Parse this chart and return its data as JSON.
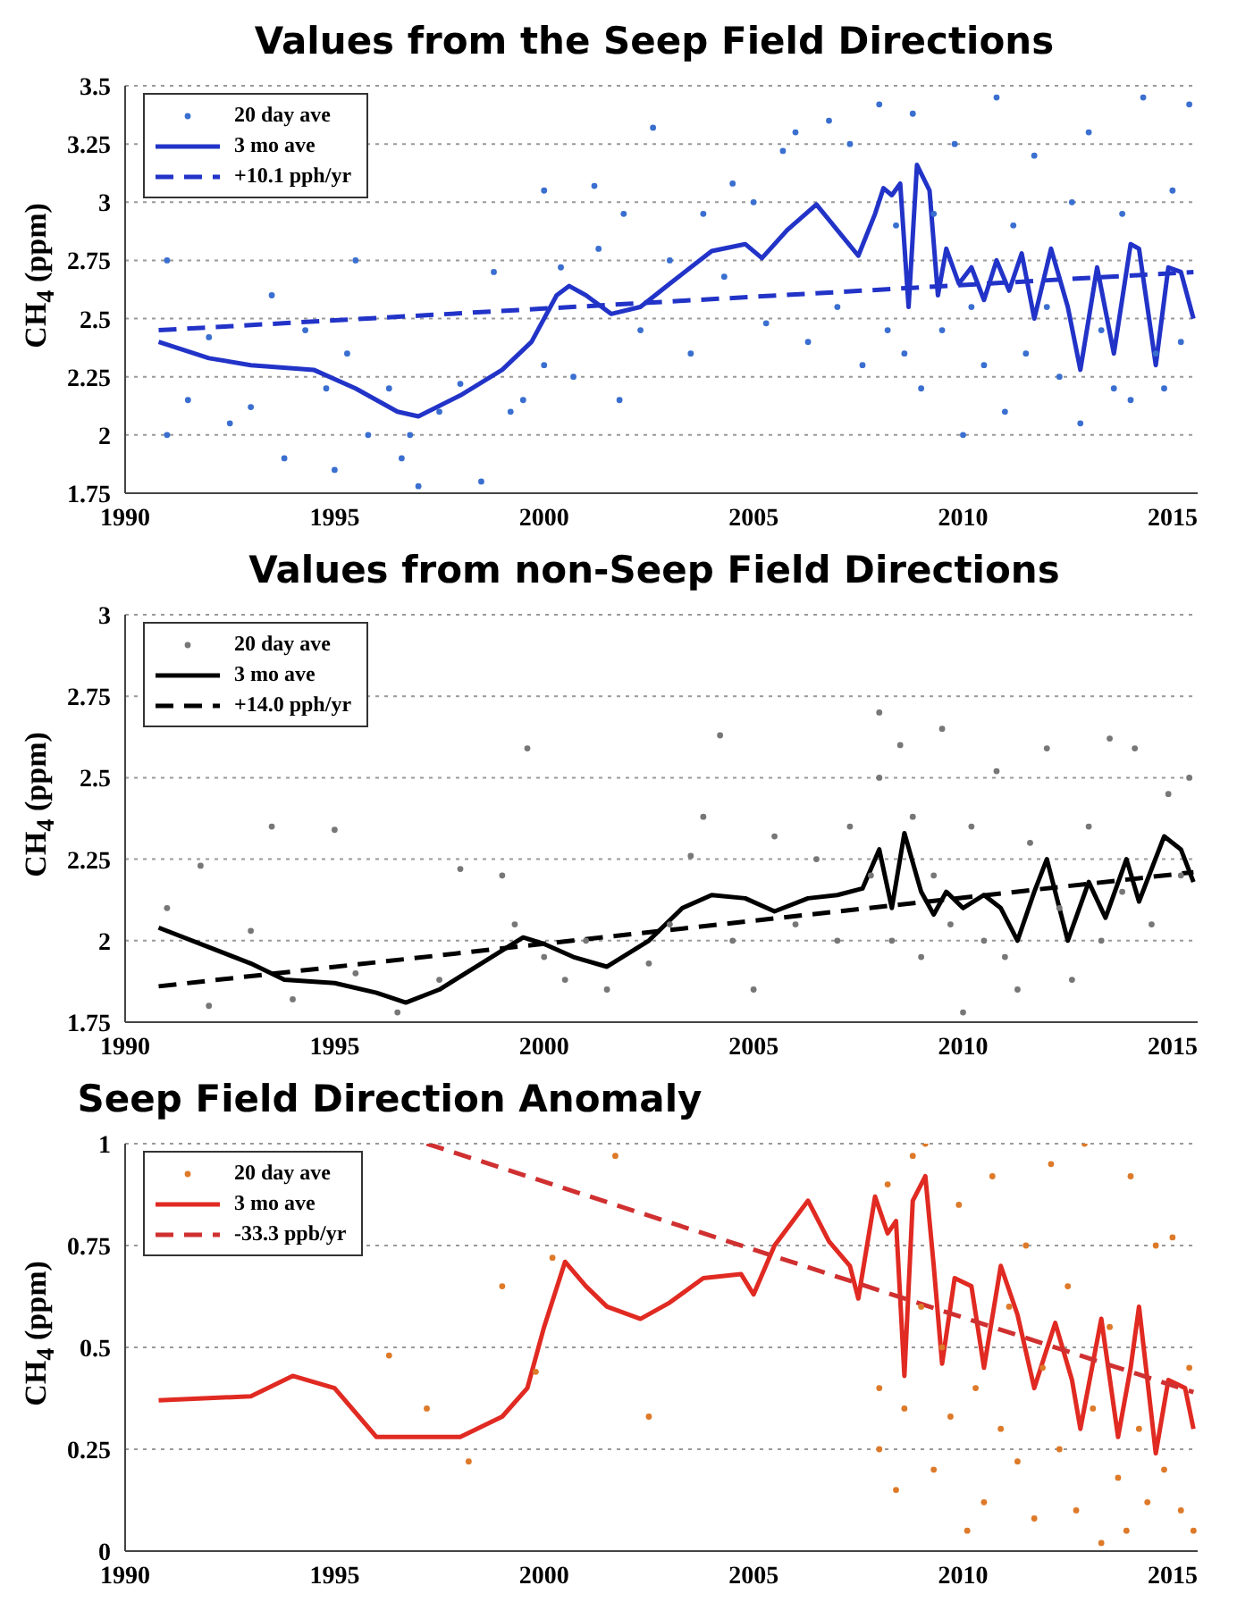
{
  "chart_data": [
    {
      "type": "line",
      "title": "Values from the Seep Field Directions",
      "ylabel": "CH$_{4}$ (ppm)",
      "xlim": [
        1990,
        2015.6
      ],
      "xticks": [
        1990,
        1995,
        2000,
        2005,
        2010,
        2015
      ],
      "ylim": [
        1.75,
        3.5
      ],
      "yticks": [
        1.75,
        2,
        2.25,
        2.5,
        2.75,
        3,
        3.25,
        3.5
      ],
      "grid": "y",
      "legend": "top left",
      "series": [
        {
          "name": "20 day ave",
          "type": "scatter",
          "marker": "circle",
          "color": "#3a6fd0",
          "x": [
            1991,
            1991,
            1991.5,
            1992,
            1992.5,
            1993,
            1993.5,
            1993.8,
            1994.3,
            1994.8,
            1995,
            1995.3,
            1995.5,
            1995.8,
            1996.3,
            1996.6,
            1996.8,
            1997,
            1997.5,
            1998,
            1998.5,
            1998.8,
            1999.2,
            1999.5,
            2000,
            2000,
            2000.4,
            2000.7,
            2001.2,
            2001.3,
            2001.8,
            2001.9,
            2002.3,
            2002.6,
            2003,
            2003.5,
            2003.8,
            2004.3,
            2004.5,
            2005,
            2005.3,
            2005.7,
            2006,
            2006.3,
            2006.8,
            2007,
            2007.3,
            2007.6,
            2008,
            2008.2,
            2008.4,
            2008.6,
            2008.8,
            2009,
            2009.3,
            2009.5,
            2009.8,
            2010,
            2010.2,
            2010.5,
            2010.8,
            2011,
            2011.2,
            2011.5,
            2011.7,
            2012,
            2012.3,
            2012.6,
            2012.8,
            2013,
            2013.3,
            2013.6,
            2013.8,
            2014,
            2014.3,
            2014.6,
            2014.8,
            2015,
            2015.2,
            2015.4
          ],
          "values": [
            2.75,
            2.0,
            2.15,
            2.42,
            2.05,
            2.12,
            2.6,
            1.9,
            2.45,
            2.2,
            1.85,
            2.35,
            2.75,
            2.0,
            2.2,
            1.9,
            2.0,
            1.78,
            2.1,
            2.22,
            1.8,
            2.7,
            2.1,
            2.15,
            2.3,
            3.05,
            2.72,
            2.25,
            3.07,
            2.8,
            2.15,
            2.95,
            2.45,
            3.32,
            2.75,
            2.35,
            2.95,
            2.68,
            3.08,
            3.0,
            2.48,
            3.22,
            3.3,
            2.4,
            3.35,
            2.55,
            3.25,
            2.3,
            3.42,
            2.45,
            2.9,
            2.35,
            3.38,
            2.2,
            2.95,
            2.45,
            3.25,
            2.0,
            2.55,
            2.3,
            3.45,
            2.1,
            2.9,
            2.35,
            3.2,
            2.55,
            2.25,
            3.0,
            2.05,
            3.3,
            2.45,
            2.2,
            2.95,
            2.15,
            3.45,
            2.35,
            2.2,
            3.05,
            2.4,
            3.42
          ]
        },
        {
          "name": "3 mo ave",
          "marker": "none",
          "line_style": "solid",
          "color": "#2233c8",
          "x": [
            1990.8,
            1992,
            1993,
            1994.5,
            1995.5,
            1996.5,
            1997,
            1998,
            1999,
            1999.7,
            2000.3,
            2000.6,
            2001,
            2001.6,
            2002.3,
            2003,
            2004,
            2004.8,
            2005.2,
            2005.8,
            2006.5,
            2007,
            2007.5,
            2007.9,
            2008.1,
            2008.3,
            2008.5,
            2008.7,
            2008.9,
            2009.2,
            2009.4,
            2009.6,
            2009.9,
            2010.2,
            2010.5,
            2010.8,
            2011.1,
            2011.4,
            2011.7,
            2012.1,
            2012.5,
            2012.8,
            2013.2,
            2013.6,
            2014,
            2014.2,
            2014.6,
            2014.9,
            2015.2,
            2015.5
          ],
          "values": [
            2.4,
            2.33,
            2.3,
            2.28,
            2.2,
            2.1,
            2.08,
            2.17,
            2.28,
            2.4,
            2.6,
            2.64,
            2.6,
            2.52,
            2.55,
            2.65,
            2.79,
            2.82,
            2.76,
            2.88,
            2.99,
            2.88,
            2.77,
            2.95,
            3.06,
            3.03,
            3.08,
            2.55,
            3.16,
            3.05,
            2.6,
            2.8,
            2.65,
            2.72,
            2.58,
            2.75,
            2.62,
            2.78,
            2.5,
            2.8,
            2.55,
            2.28,
            2.72,
            2.35,
            2.82,
            2.8,
            2.3,
            2.72,
            2.7,
            2.5
          ]
        },
        {
          "name": "+10.1 pph/yr",
          "marker": "none",
          "line_style": "dashed",
          "color": "#2233c8",
          "x": [
            1990.8,
            2015.5
          ],
          "values": [
            2.45,
            2.7
          ]
        }
      ]
    },
    {
      "type": "line",
      "title": "Values from non-Seep Field Directions",
      "ylabel": "CH$_{4}$ (ppm)",
      "xlim": [
        1990,
        2015.6
      ],
      "xticks": [
        1990,
        1995,
        2000,
        2005,
        2010,
        2015
      ],
      "ylim": [
        1.75,
        3
      ],
      "yticks": [
        1.75,
        2,
        2.25,
        2.5,
        2.75,
        3
      ],
      "grid": "y",
      "legend": "top left",
      "series": [
        {
          "name": "20 day ave",
          "type": "scatter",
          "marker": "circle",
          "color": "#777777",
          "x": [
            1991,
            1991.8,
            1992,
            1993,
            1993.5,
            1994,
            1995,
            1995.5,
            1996.5,
            1997.5,
            1998,
            1999,
            1999.3,
            1999.6,
            2000,
            2000.5,
            2001,
            2001.5,
            2002.5,
            2003,
            2003.5,
            2003.8,
            2004.2,
            2004.5,
            2005,
            2005.5,
            2006,
            2006.5,
            2007,
            2007.3,
            2007.8,
            2008,
            2008,
            2008.3,
            2008.5,
            2008.8,
            2009,
            2009.3,
            2009.5,
            2009.7,
            2010,
            2010.2,
            2010.5,
            2010.8,
            2011,
            2011.3,
            2011.6,
            2012,
            2012.3,
            2012.6,
            2013,
            2013.3,
            2013.5,
            2013.8,
            2014.1,
            2014.5,
            2014.9,
            2015.2,
            2015.4
          ],
          "values": [
            2.1,
            2.23,
            1.8,
            2.03,
            2.35,
            1.82,
            2.34,
            1.9,
            1.78,
            1.88,
            2.22,
            2.2,
            2.05,
            2.59,
            1.95,
            1.88,
            2.0,
            1.85,
            1.93,
            2.05,
            2.26,
            2.38,
            2.63,
            2.0,
            1.85,
            2.32,
            2.05,
            2.25,
            2.0,
            2.35,
            2.2,
            2.7,
            2.5,
            2.0,
            2.6,
            2.38,
            1.95,
            2.2,
            2.65,
            2.05,
            1.78,
            2.35,
            2.0,
            2.52,
            1.95,
            1.85,
            2.3,
            2.59,
            2.1,
            1.88,
            2.35,
            2.0,
            2.62,
            2.15,
            2.59,
            2.05,
            2.45,
            2.2,
            2.5
          ]
        },
        {
          "name": "3 mo ave",
          "marker": "none",
          "line_style": "solid",
          "color": "#000000",
          "x": [
            1990.8,
            1992,
            1993,
            1993.8,
            1995,
            1996,
            1996.7,
            1997.5,
            1998.5,
            1999.5,
            2000,
            2000.7,
            2001.5,
            2002.5,
            2003.3,
            2004,
            2004.8,
            2005.5,
            2006.3,
            2007,
            2007.6,
            2008,
            2008.3,
            2008.6,
            2009,
            2009.3,
            2009.6,
            2010,
            2010.5,
            2010.9,
            2011.3,
            2011.7,
            2012,
            2012.5,
            2013,
            2013.4,
            2013.9,
            2014.2,
            2014.8,
            2015.2,
            2015.5
          ],
          "values": [
            2.04,
            1.98,
            1.93,
            1.88,
            1.87,
            1.84,
            1.81,
            1.85,
            1.93,
            2.01,
            1.99,
            1.95,
            1.92,
            2.0,
            2.1,
            2.14,
            2.13,
            2.09,
            2.13,
            2.14,
            2.16,
            2.28,
            2.1,
            2.33,
            2.15,
            2.08,
            2.15,
            2.1,
            2.14,
            2.1,
            2.0,
            2.15,
            2.25,
            2.0,
            2.18,
            2.07,
            2.25,
            2.12,
            2.32,
            2.28,
            2.18
          ]
        },
        {
          "name": "+14.0 pph/yr",
          "marker": "none",
          "line_style": "dashed",
          "color": "#000000",
          "x": [
            1990.8,
            2015.5
          ],
          "values": [
            1.86,
            2.21
          ]
        }
      ]
    },
    {
      "type": "line",
      "title": "Seep Field Direction Anomaly",
      "ylabel": "CH$_{4}$ (ppm)",
      "xlim": [
        1990,
        2015.6
      ],
      "xticks": [
        1990,
        1995,
        2000,
        2005,
        2010,
        2015
      ],
      "ylim": [
        0,
        1
      ],
      "yticks": [
        0,
        0.25,
        0.5,
        0.75,
        1
      ],
      "grid": "y",
      "legend": "top left",
      "series": [
        {
          "name": "20 day ave",
          "type": "scatter",
          "marker": "circle",
          "color": "#dd7a2a",
          "x": [
            1996.3,
            1997.2,
            1998.2,
            1999,
            1999.8,
            2000.2,
            2001.7,
            2002.5,
            2008,
            2008,
            2008.2,
            2008.4,
            2008.6,
            2008.8,
            2009,
            2009.1,
            2009.3,
            2009.5,
            2009.7,
            2009.9,
            2010.1,
            2010.3,
            2010.5,
            2010.7,
            2010.9,
            2011.1,
            2011.3,
            2011.5,
            2011.7,
            2011.9,
            2012.1,
            2012.3,
            2012.5,
            2012.7,
            2012.9,
            2013.1,
            2013.3,
            2013.5,
            2013.7,
            2013.9,
            2014,
            2014.2,
            2014.4,
            2014.6,
            2014.8,
            2015,
            2015.2,
            2015.4,
            2015.5
          ],
          "values": [
            0.48,
            0.35,
            0.22,
            0.65,
            0.44,
            0.72,
            0.97,
            0.33,
            0.25,
            0.4,
            0.9,
            0.15,
            0.35,
            0.97,
            0.6,
            1.0,
            0.2,
            0.5,
            0.33,
            0.85,
            0.05,
            0.4,
            0.12,
            0.92,
            0.3,
            0.6,
            0.22,
            0.75,
            0.08,
            0.45,
            0.95,
            0.25,
            0.65,
            0.1,
            1.0,
            0.35,
            0.02,
            0.55,
            0.18,
            0.05,
            0.92,
            0.3,
            0.12,
            0.75,
            0.2,
            0.77,
            0.1,
            0.45,
            0.05
          ]
        },
        {
          "name": "3 mo ave",
          "marker": "none",
          "line_style": "solid",
          "color": "#e02a22",
          "x": [
            1990.8,
            1993,
            1994,
            1995,
            1996,
            1997,
            1998,
            1999,
            1999.6,
            2000,
            2000.5,
            2001,
            2001.5,
            2002.3,
            2003,
            2003.8,
            2004.7,
            2005,
            2005.5,
            2006.3,
            2006.8,
            2007.3,
            2007.5,
            2007.9,
            2008.2,
            2008.4,
            2008.6,
            2008.8,
            2009.1,
            2009.3,
            2009.5,
            2009.8,
            2010.2,
            2010.5,
            2010.9,
            2011.3,
            2011.7,
            2012.2,
            2012.6,
            2012.8,
            2013.3,
            2013.7,
            2014,
            2014.2,
            2014.6,
            2014.9,
            2015.3,
            2015.5
          ],
          "values": [
            0.37,
            0.38,
            0.43,
            0.4,
            0.28,
            0.28,
            0.28,
            0.33,
            0.4,
            0.55,
            0.71,
            0.65,
            0.6,
            0.57,
            0.61,
            0.67,
            0.68,
            0.63,
            0.75,
            0.86,
            0.76,
            0.7,
            0.62,
            0.87,
            0.78,
            0.81,
            0.43,
            0.86,
            0.92,
            0.7,
            0.46,
            0.67,
            0.65,
            0.45,
            0.7,
            0.58,
            0.4,
            0.56,
            0.42,
            0.3,
            0.57,
            0.28,
            0.45,
            0.6,
            0.24,
            0.42,
            0.4,
            0.3
          ]
        },
        {
          "name": "-33.3 ppb/yr",
          "marker": "none",
          "line_style": "dashed",
          "color": "#d03030",
          "x": [
            1997.2,
            2015.5
          ],
          "values": [
            1.0,
            0.39
          ]
        }
      ]
    }
  ]
}
